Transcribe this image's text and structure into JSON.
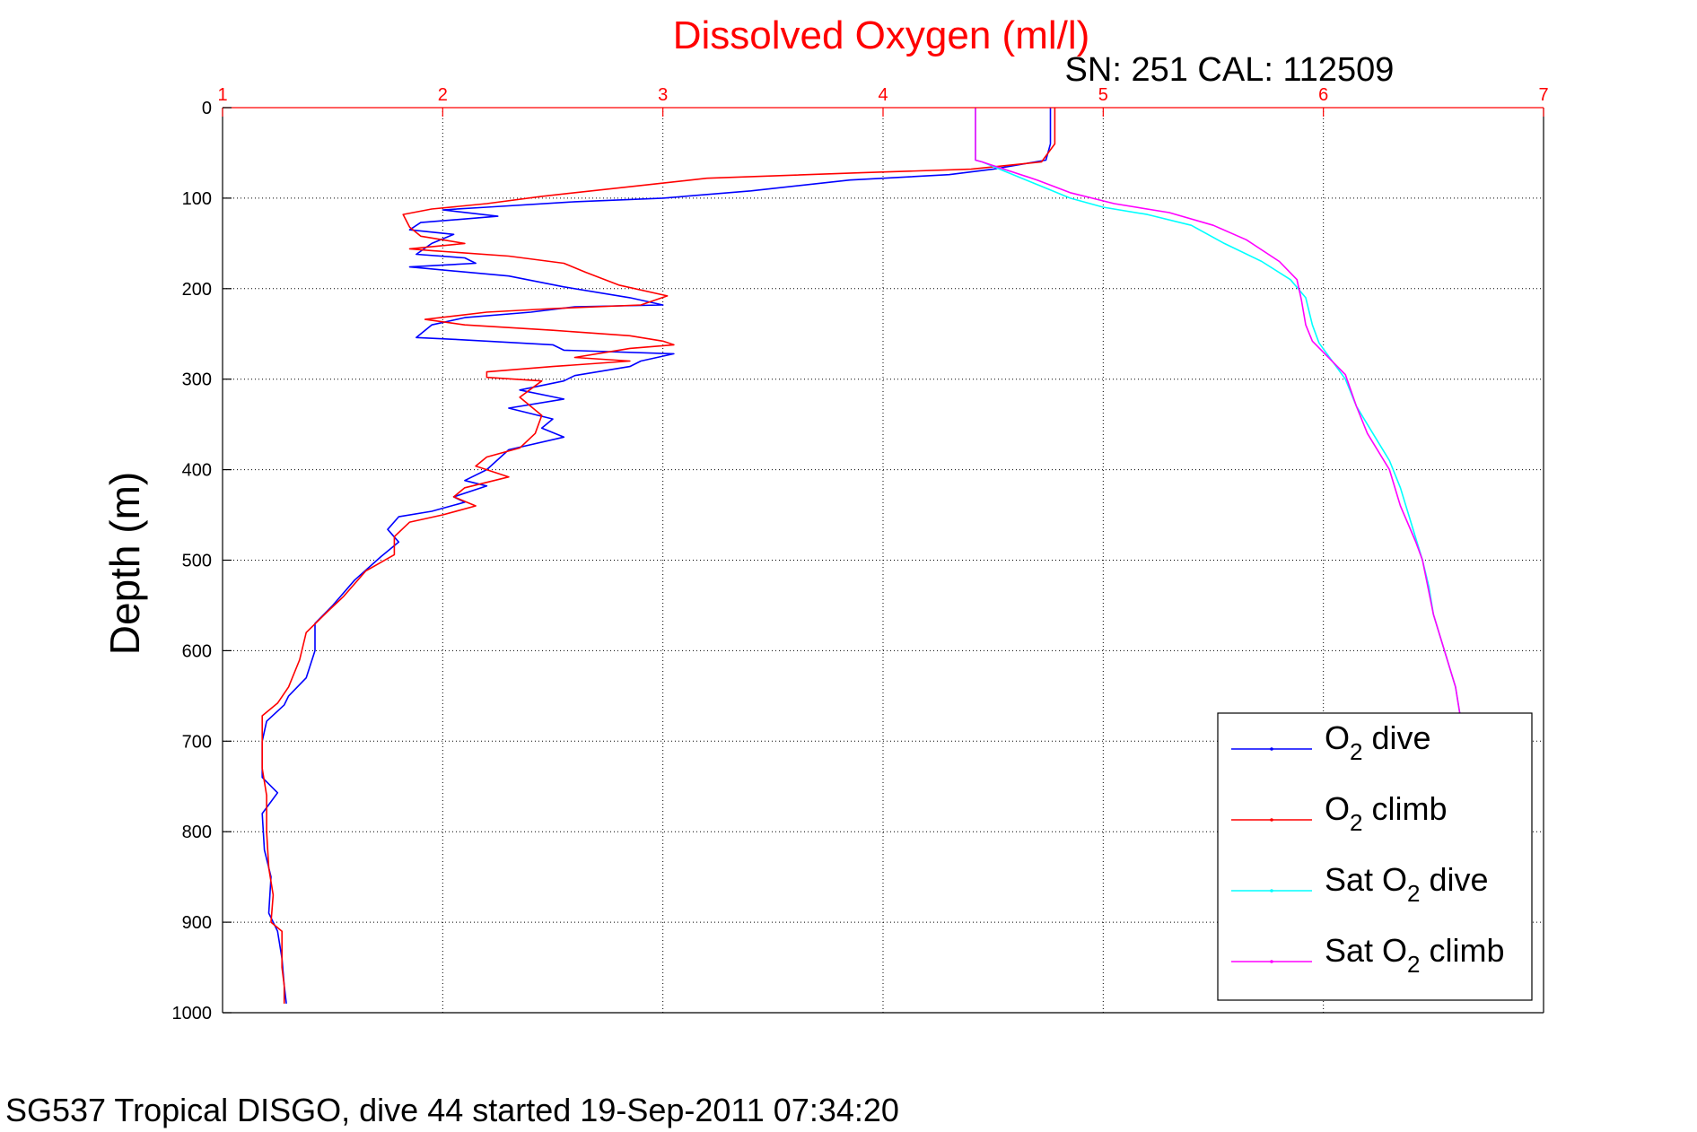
{
  "chart_data": {
    "type": "line",
    "title": "Dissolved Oxygen (ml/l)",
    "subtitle": "SN: 251  CAL: 112509",
    "ylabel": "Depth (m)",
    "caption": "SG537 Tropical DISGO, dive 44 started 19-Sep-2011 07:34:20",
    "xlim": [
      1,
      7
    ],
    "ylim": [
      0,
      1000
    ],
    "y_reversed": true,
    "x_axis_position": "top",
    "xticks": [
      "1",
      "2",
      "3",
      "4",
      "5",
      "6",
      "7"
    ],
    "yticks": [
      "0",
      "100",
      "200",
      "300",
      "400",
      "500",
      "600",
      "700",
      "800",
      "900",
      "1000"
    ],
    "grid": true,
    "legend_position": "bottom-right",
    "colors": {
      "axis_x": "#ff0000",
      "axis_y": "#000000",
      "grid": "#000000"
    },
    "series": [
      {
        "name_prefix": "O",
        "name_sub": "2",
        "name_suffix": " dive",
        "color": "#0000ff",
        "points": [
          [
            4.76,
            0
          ],
          [
            4.76,
            20
          ],
          [
            4.76,
            40
          ],
          [
            4.74,
            58
          ],
          [
            4.5,
            68
          ],
          [
            4.3,
            74
          ],
          [
            3.85,
            80
          ],
          [
            3.4,
            92
          ],
          [
            3.0,
            100
          ],
          [
            2.6,
            104
          ],
          [
            2.2,
            110
          ],
          [
            2.0,
            113
          ],
          [
            2.25,
            120
          ],
          [
            1.9,
            127
          ],
          [
            1.85,
            135
          ],
          [
            2.05,
            140
          ],
          [
            1.95,
            150
          ],
          [
            1.88,
            162
          ],
          [
            2.1,
            166
          ],
          [
            2.15,
            172
          ],
          [
            1.85,
            176
          ],
          [
            2.3,
            186
          ],
          [
            2.55,
            198
          ],
          [
            2.85,
            210
          ],
          [
            3.0,
            218
          ],
          [
            2.6,
            220
          ],
          [
            2.4,
            226
          ],
          [
            2.1,
            232
          ],
          [
            1.95,
            240
          ],
          [
            1.88,
            254
          ],
          [
            2.05,
            256
          ],
          [
            2.5,
            262
          ],
          [
            2.55,
            268
          ],
          [
            3.05,
            272
          ],
          [
            2.9,
            280
          ],
          [
            2.85,
            286
          ],
          [
            2.6,
            296
          ],
          [
            2.55,
            302
          ],
          [
            2.35,
            312
          ],
          [
            2.55,
            322
          ],
          [
            2.3,
            332
          ],
          [
            2.5,
            344
          ],
          [
            2.45,
            354
          ],
          [
            2.55,
            364
          ],
          [
            2.3,
            378
          ],
          [
            2.2,
            400
          ],
          [
            2.1,
            412
          ],
          [
            2.2,
            418
          ],
          [
            2.05,
            430
          ],
          [
            2.1,
            436
          ],
          [
            1.95,
            446
          ],
          [
            1.8,
            452
          ],
          [
            1.75,
            466
          ],
          [
            1.8,
            480
          ],
          [
            1.72,
            496
          ],
          [
            1.6,
            522
          ],
          [
            1.5,
            550
          ],
          [
            1.42,
            570
          ],
          [
            1.42,
            600
          ],
          [
            1.38,
            630
          ],
          [
            1.3,
            650
          ],
          [
            1.28,
            660
          ],
          [
            1.2,
            678
          ],
          [
            1.18,
            700
          ],
          [
            1.18,
            740
          ],
          [
            1.25,
            757
          ],
          [
            1.18,
            780
          ],
          [
            1.19,
            820
          ],
          [
            1.22,
            850
          ],
          [
            1.21,
            890
          ],
          [
            1.25,
            910
          ],
          [
            1.27,
            940
          ],
          [
            1.28,
            970
          ],
          [
            1.29,
            990
          ]
        ]
      },
      {
        "name_prefix": "O",
        "name_sub": "2",
        "name_suffix": " climb",
        "color": "#ff0000",
        "points": [
          [
            4.78,
            0
          ],
          [
            4.78,
            20
          ],
          [
            4.78,
            40
          ],
          [
            4.72,
            60
          ],
          [
            4.4,
            68
          ],
          [
            3.9,
            72
          ],
          [
            3.2,
            78
          ],
          [
            2.9,
            86
          ],
          [
            2.45,
            98
          ],
          [
            2.2,
            106
          ],
          [
            1.95,
            112
          ],
          [
            1.82,
            118
          ],
          [
            1.85,
            132
          ],
          [
            1.9,
            142
          ],
          [
            2.1,
            150
          ],
          [
            1.85,
            156
          ],
          [
            1.95,
            158
          ],
          [
            2.3,
            164
          ],
          [
            2.55,
            172
          ],
          [
            2.65,
            182
          ],
          [
            2.8,
            196
          ],
          [
            3.02,
            208
          ],
          [
            2.9,
            218
          ],
          [
            2.5,
            222
          ],
          [
            2.2,
            226
          ],
          [
            1.92,
            234
          ],
          [
            2.1,
            240
          ],
          [
            2.5,
            246
          ],
          [
            2.85,
            252
          ],
          [
            3.0,
            258
          ],
          [
            3.05,
            262
          ],
          [
            2.85,
            266
          ],
          [
            2.6,
            276
          ],
          [
            2.85,
            280
          ],
          [
            2.5,
            286
          ],
          [
            2.2,
            292
          ],
          [
            2.2,
            298
          ],
          [
            2.45,
            302
          ],
          [
            2.35,
            320
          ],
          [
            2.45,
            340
          ],
          [
            2.42,
            360
          ],
          [
            2.35,
            376
          ],
          [
            2.2,
            386
          ],
          [
            2.15,
            396
          ],
          [
            2.3,
            408
          ],
          [
            2.1,
            420
          ],
          [
            2.05,
            430
          ],
          [
            2.15,
            440
          ],
          [
            2.0,
            450
          ],
          [
            1.85,
            458
          ],
          [
            1.78,
            474
          ],
          [
            1.78,
            494
          ],
          [
            1.65,
            512
          ],
          [
            1.55,
            540
          ],
          [
            1.48,
            556
          ],
          [
            1.38,
            580
          ],
          [
            1.35,
            610
          ],
          [
            1.3,
            640
          ],
          [
            1.25,
            658
          ],
          [
            1.18,
            672
          ],
          [
            1.18,
            700
          ],
          [
            1.18,
            730
          ],
          [
            1.2,
            760
          ],
          [
            1.2,
            800
          ],
          [
            1.21,
            840
          ],
          [
            1.23,
            870
          ],
          [
            1.22,
            900
          ],
          [
            1.27,
            910
          ],
          [
            1.27,
            950
          ],
          [
            1.28,
            970
          ],
          [
            1.28,
            990
          ]
        ]
      },
      {
        "name_prefix": "Sat O",
        "name_sub": "2",
        "name_suffix": " dive",
        "color": "#00ffff",
        "points": [
          [
            4.42,
            0
          ],
          [
            4.42,
            58
          ],
          [
            4.45,
            60
          ],
          [
            4.55,
            70
          ],
          [
            4.65,
            80
          ],
          [
            4.75,
            90
          ],
          [
            4.85,
            100
          ],
          [
            5.0,
            110
          ],
          [
            5.2,
            118
          ],
          [
            5.4,
            130
          ],
          [
            5.55,
            150
          ],
          [
            5.72,
            170
          ],
          [
            5.85,
            190
          ],
          [
            5.92,
            210
          ],
          [
            5.95,
            240
          ],
          [
            5.98,
            260
          ],
          [
            6.1,
            300
          ],
          [
            6.15,
            330
          ],
          [
            6.25,
            370
          ],
          [
            6.3,
            390
          ],
          [
            6.35,
            420
          ],
          [
            6.4,
            460
          ],
          [
            6.45,
            500
          ],
          [
            6.48,
            530
          ],
          [
            6.5,
            560
          ],
          [
            6.55,
            600
          ],
          [
            6.6,
            640
          ],
          [
            6.62,
            670
          ]
        ]
      },
      {
        "name_prefix": "Sat O",
        "name_sub": "2",
        "name_suffix": " climb",
        "color": "#ff00ff",
        "points": [
          [
            4.42,
            0
          ],
          [
            4.42,
            58
          ],
          [
            4.45,
            60
          ],
          [
            4.55,
            68
          ],
          [
            4.7,
            80
          ],
          [
            4.85,
            94
          ],
          [
            5.05,
            106
          ],
          [
            5.3,
            116
          ],
          [
            5.5,
            130
          ],
          [
            5.65,
            146
          ],
          [
            5.8,
            170
          ],
          [
            5.88,
            190
          ],
          [
            5.9,
            212
          ],
          [
            5.92,
            240
          ],
          [
            5.95,
            258
          ],
          [
            6.1,
            295
          ],
          [
            6.15,
            330
          ],
          [
            6.2,
            360
          ],
          [
            6.3,
            400
          ],
          [
            6.35,
            440
          ],
          [
            6.42,
            480
          ],
          [
            6.45,
            500
          ],
          [
            6.5,
            560
          ],
          [
            6.55,
            600
          ],
          [
            6.6,
            640
          ],
          [
            6.62,
            670
          ]
        ]
      }
    ]
  }
}
